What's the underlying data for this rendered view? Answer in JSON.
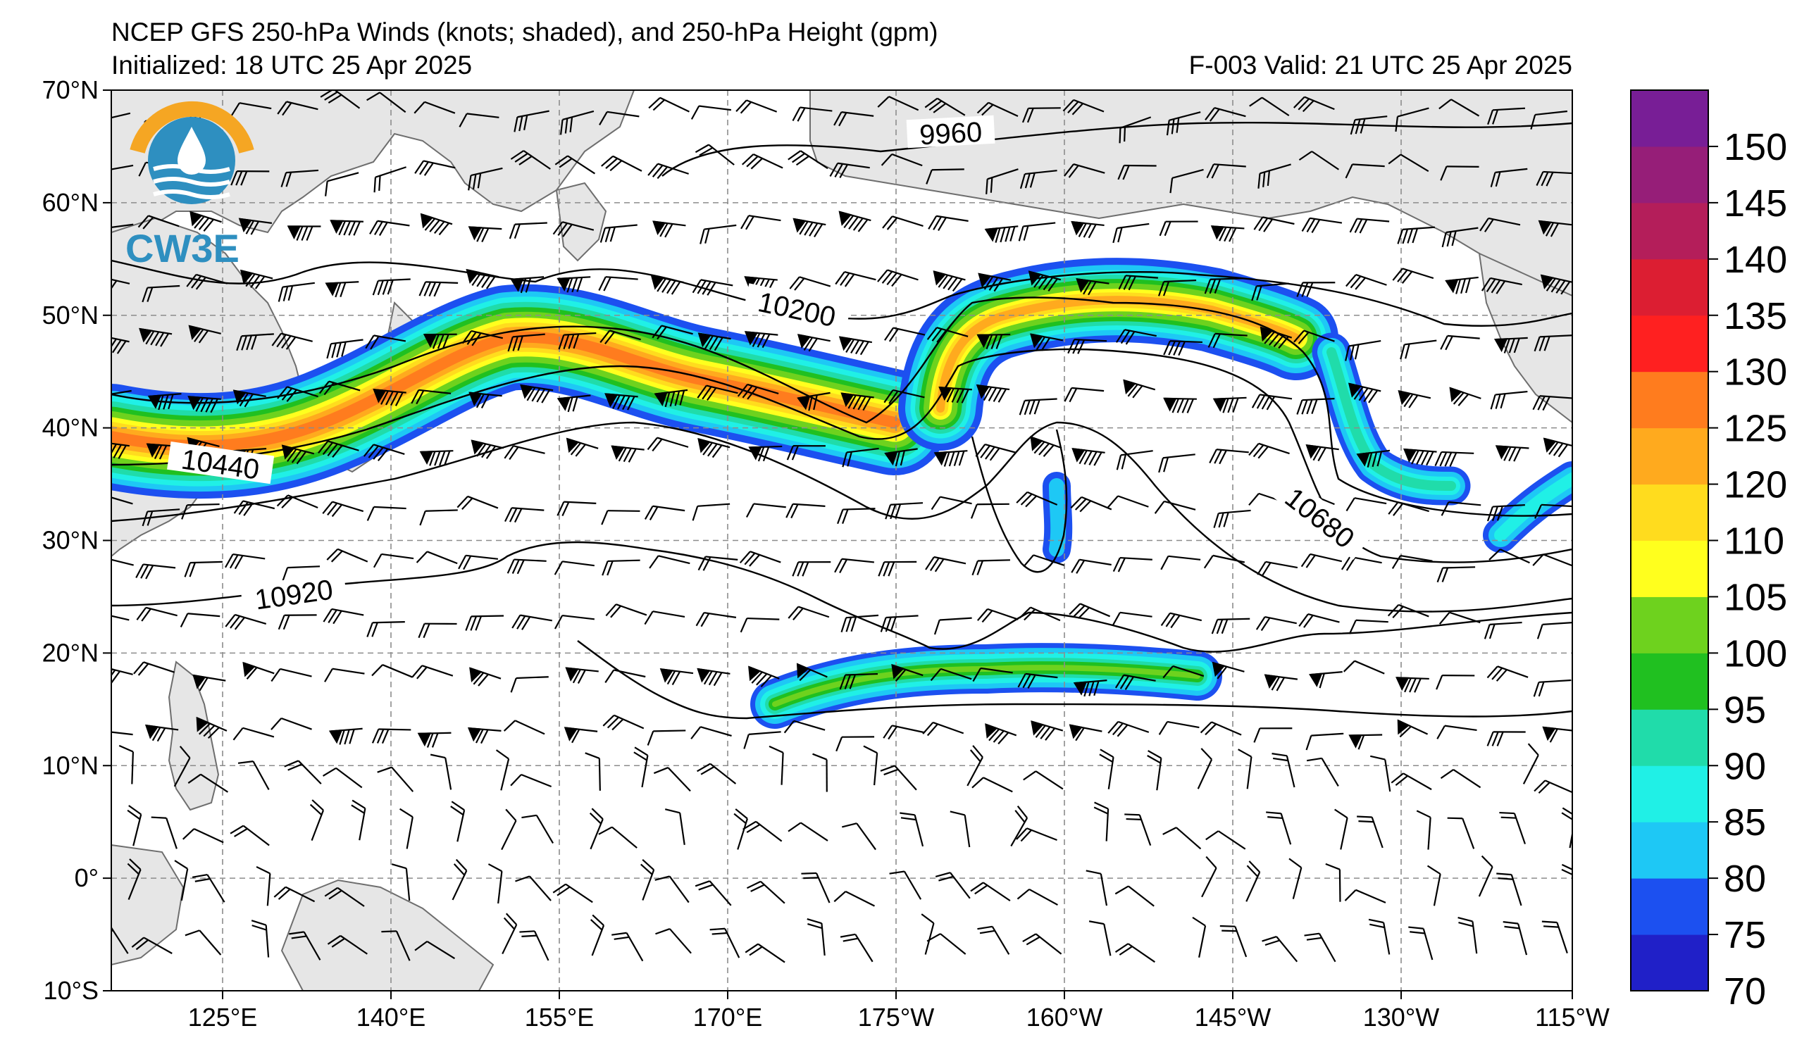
{
  "title": {
    "line1": "NCEP GFS 250-hPa Winds (knots; shaded), and 250-hPa Height (gpm)",
    "line2_left": "Initialized: 18 UTC 25 Apr 2025",
    "line2_right": "F-003  Valid: 21 UTC 25 Apr 2025"
  },
  "logo": {
    "text": "CW3E"
  },
  "axes": {
    "lat_ticks": [
      "70°N",
      "60°N",
      "50°N",
      "40°N",
      "30°N",
      "20°N",
      "10°N",
      "0°",
      "10°S"
    ],
    "lon_ticks": [
      "125°E",
      "140°E",
      "155°E",
      "170°E",
      "175°W",
      "160°W",
      "145°W",
      "130°W",
      "115°W"
    ]
  },
  "contour_labels": [
    "9960",
    "10200",
    "10440",
    "10680",
    "10920"
  ],
  "colorbar": {
    "ticks": [
      "70",
      "75",
      "80",
      "85",
      "90",
      "95",
      "100",
      "105",
      "110",
      "120",
      "125",
      "130",
      "135",
      "140",
      "145",
      "150"
    ],
    "colors": [
      "#2020c8",
      "#1c50f0",
      "#1ec8f5",
      "#20f0e6",
      "#20dcaa",
      "#20c020",
      "#6ed21e",
      "#ffff1e",
      "#ffdc1e",
      "#ffaa1e",
      "#ff7c1e",
      "#ff2020",
      "#dc1e32",
      "#b41e5a",
      "#961e78",
      "#781e96"
    ]
  },
  "map_colors": {
    "land": "#e6e6e6",
    "coast": "#6e6e6e",
    "grid": "#8c8c8c",
    "contour": "#000000"
  }
}
